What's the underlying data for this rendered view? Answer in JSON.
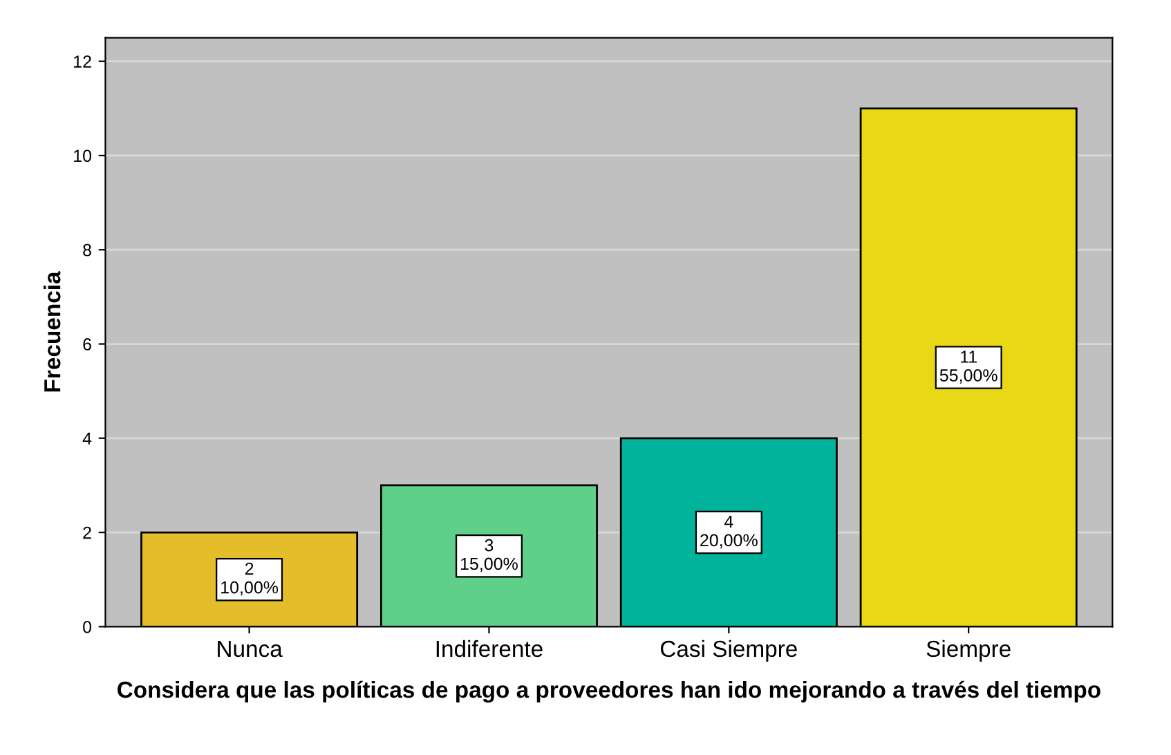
{
  "chart_data": {
    "type": "bar",
    "xlabel": "Considera que las políticas de pago a proveedores han ido mejorando a través del tiempo",
    "ylabel": "Frecuencia",
    "categories": [
      "Nunca",
      "Indiferente",
      "Casi Siempre",
      "Siempre"
    ],
    "values": [
      2,
      3,
      4,
      11
    ],
    "colors": [
      "#e3bd2a",
      "#5fcf8a",
      "#00b39a",
      "#e8d815"
    ],
    "value_labels": [
      "2\n10,00%",
      "3\n15,00%",
      "4\n20,00%",
      "11\n55,00%"
    ],
    "ylim": [
      0,
      12.5
    ],
    "yticks": [
      0,
      2,
      4,
      6,
      8,
      10,
      12
    ],
    "grid": "y"
  }
}
